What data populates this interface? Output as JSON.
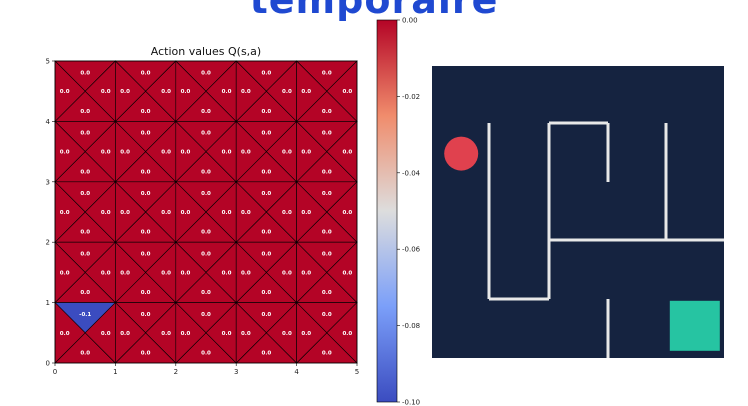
{
  "heading": "temporaire",
  "chart_data": [
    {
      "type": "heatmap",
      "title": "Action values Q(s,a)",
      "grid_size": 5,
      "xlim": [
        0,
        5
      ],
      "ylim": [
        0,
        5
      ],
      "xticks": [
        "0",
        "1",
        "2",
        "3",
        "4",
        "5"
      ],
      "yticks": [
        "0",
        "1",
        "2",
        "3",
        "4",
        "5"
      ],
      "actions": [
        "up",
        "down",
        "left",
        "right"
      ],
      "default_value": "0.0",
      "special_cells": [
        {
          "col": 0,
          "row": 4,
          "action": "up",
          "value": -0.1,
          "label": "-0.1"
        }
      ],
      "colormap": {
        "min": -0.1,
        "max": 0.0,
        "min_color": "#3b4cc0",
        "mid_color": "#dddddd",
        "max_color": "#b40426"
      },
      "cell_color": "#b40426",
      "colorbar": {
        "min": -0.1,
        "max": 0.0,
        "ticks": [
          "0.00",
          "-0.02",
          "-0.04",
          "-0.06",
          "-0.08",
          "-0.10"
        ]
      }
    }
  ],
  "maze": {
    "background": "#152340",
    "wall_color": "#e8e8e8",
    "agent_color": "#e0414e",
    "goal_color": "#26c4a2",
    "agent": {
      "col": 0.5,
      "row": 1.5
    },
    "goal": {
      "col": 4.5,
      "row": 4.5
    }
  }
}
